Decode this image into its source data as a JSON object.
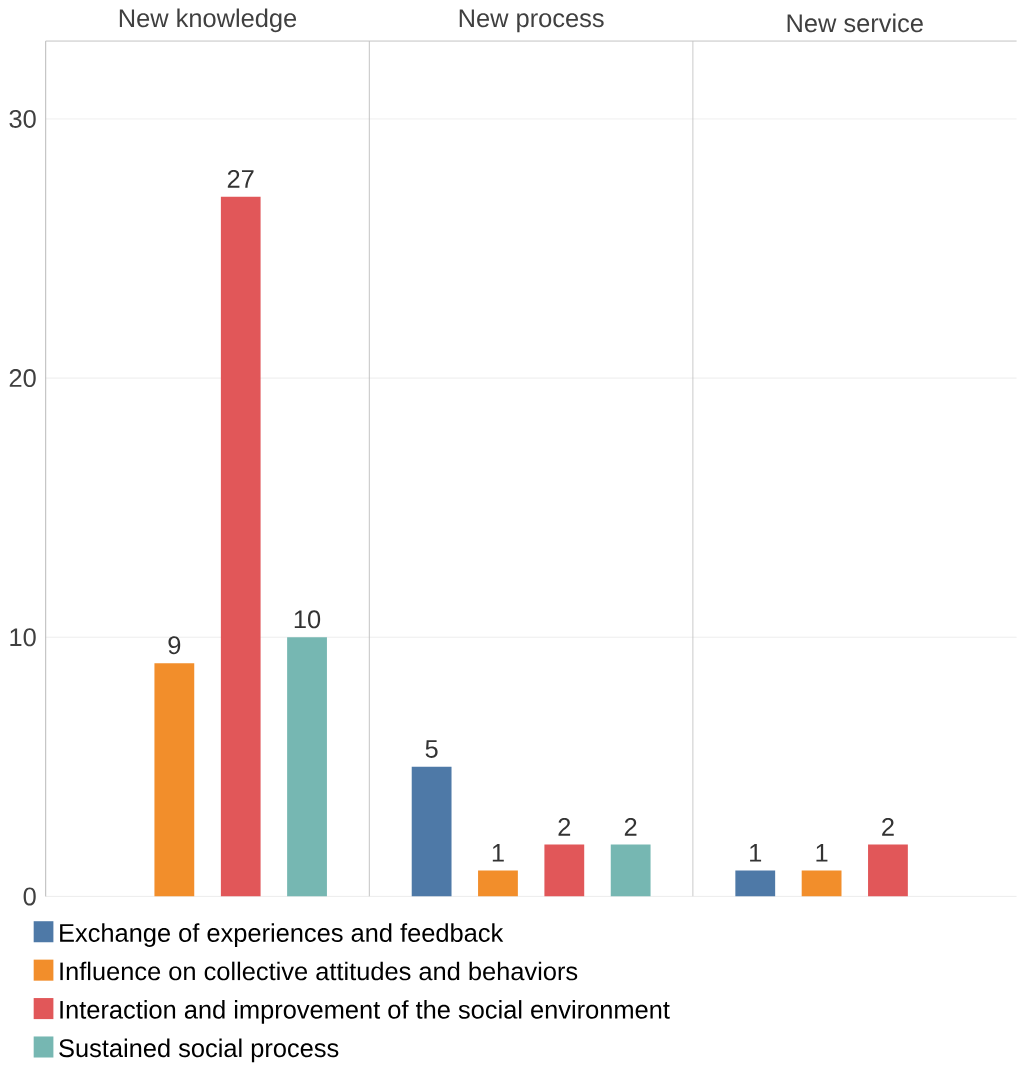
{
  "chart_data": {
    "type": "bar",
    "categories": [
      "New knowledge",
      "New process",
      "New service"
    ],
    "series": [
      {
        "name": "Exchange of experiences and feedback",
        "color": "#4e79a7",
        "values": [
          null,
          5,
          1
        ]
      },
      {
        "name": "Influence on collective attitudes and behaviors",
        "color": "#f28e2b",
        "values": [
          9,
          1,
          1
        ]
      },
      {
        "name": "Interaction and improvement of the social environment",
        "color": "#e15759",
        "values": [
          27,
          2,
          2
        ]
      },
      {
        "name": "Sustained social process",
        "color": "#76b7b2",
        "values": [
          10,
          2,
          null
        ]
      }
    ],
    "ylim": [
      0,
      33
    ],
    "yticks": [
      0,
      10,
      20,
      30
    ],
    "grid": "y",
    "legend": "bottom",
    "data_labels": true
  }
}
